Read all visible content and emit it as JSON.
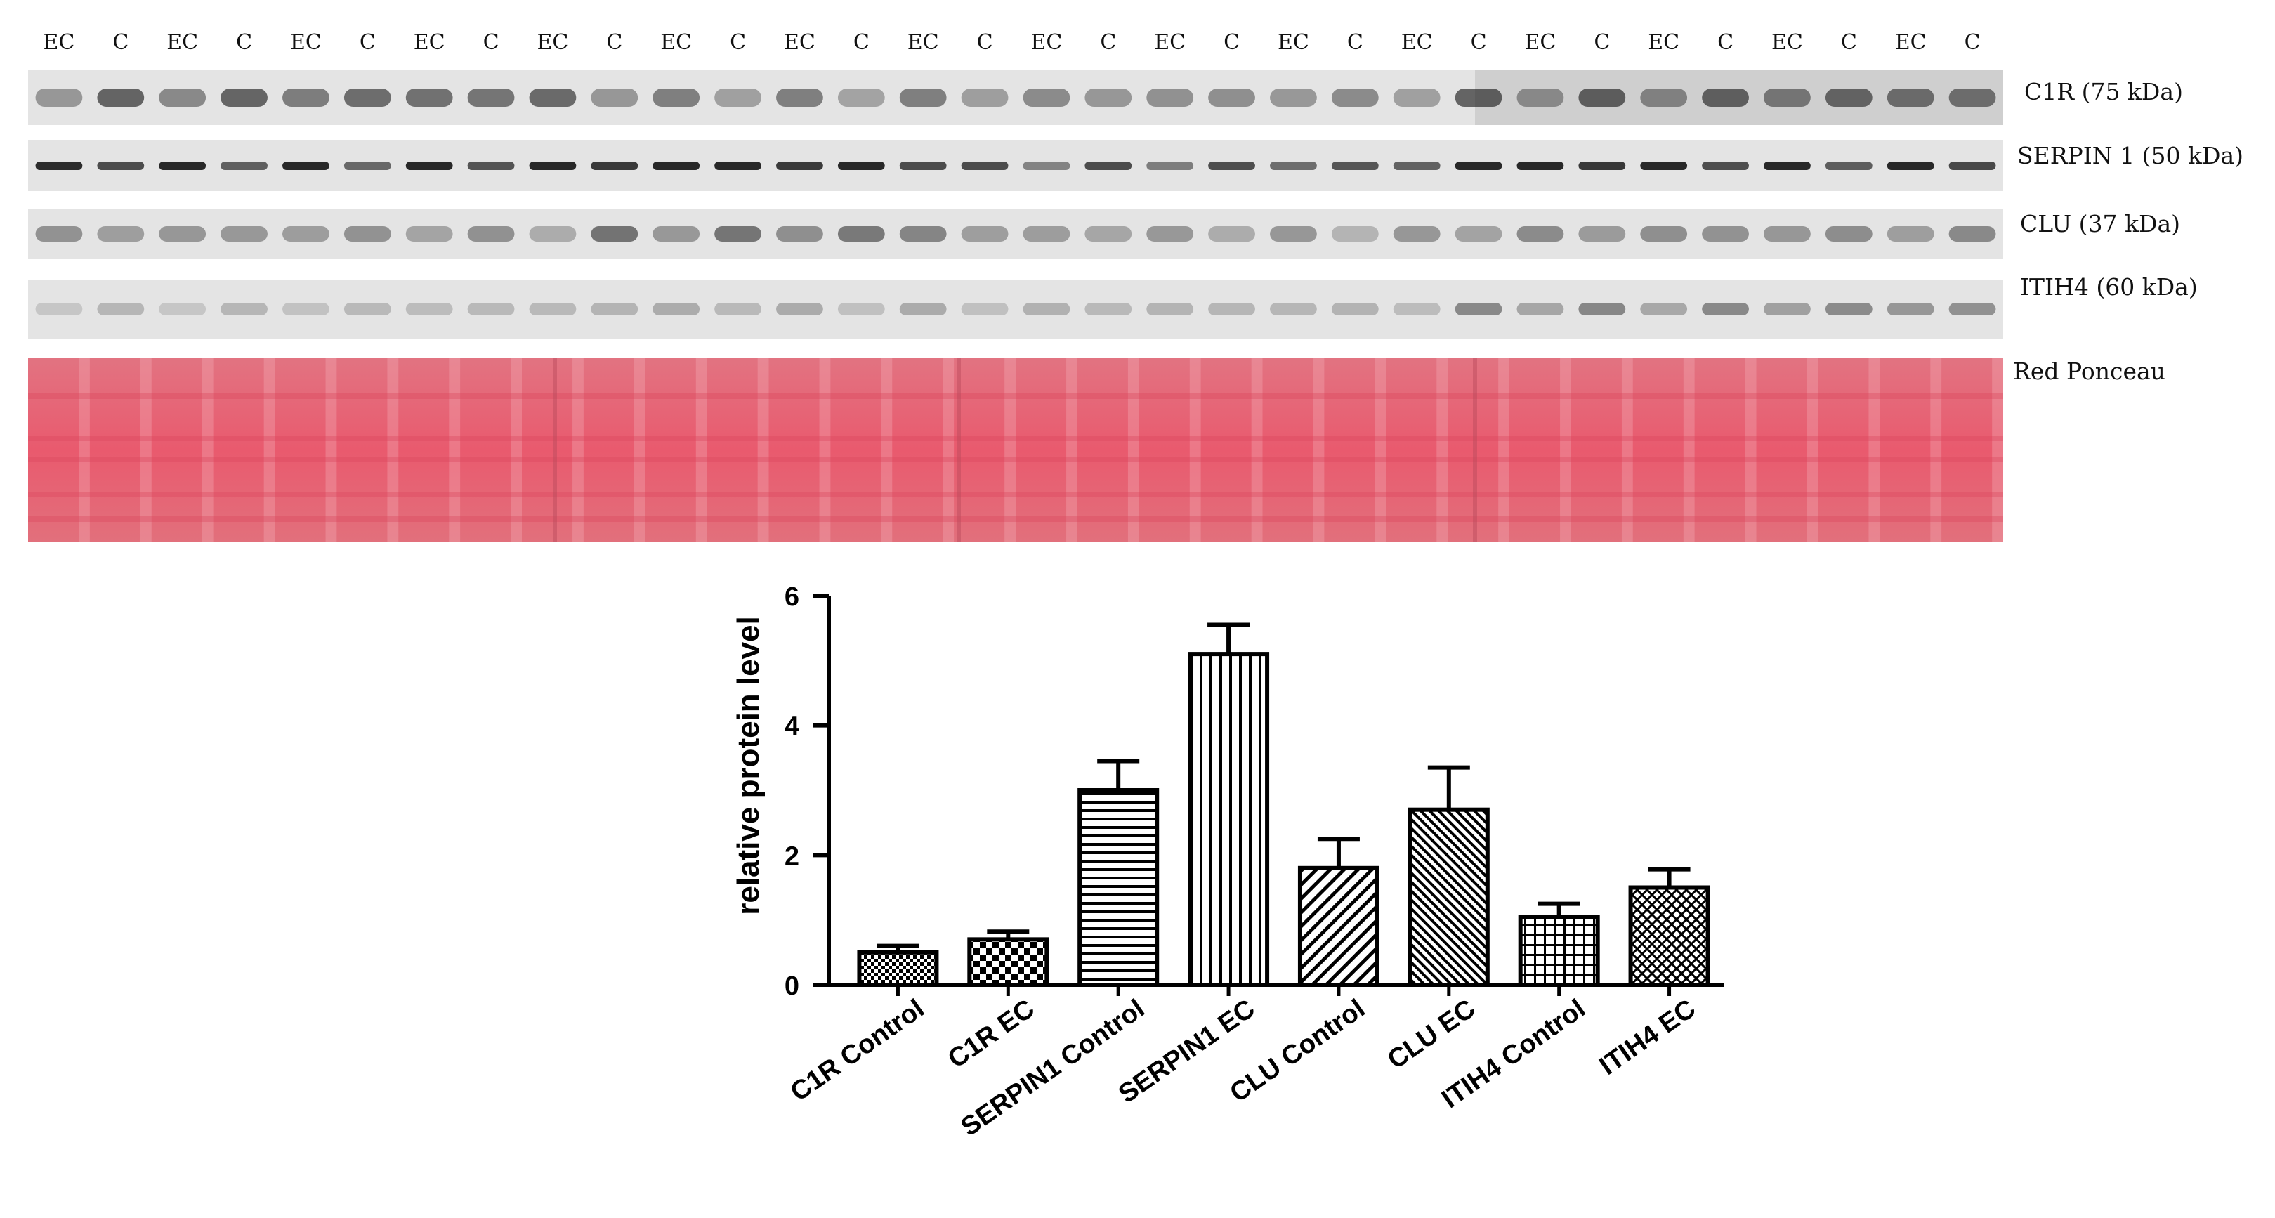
{
  "blot": {
    "lane_labels": [
      "EC",
      "C",
      "EC",
      "C",
      "EC",
      "C",
      "EC",
      "C",
      "EC",
      "C",
      "EC",
      "C",
      "EC",
      "C",
      "EC",
      "C",
      "EC",
      "C",
      "EC",
      "C",
      "EC",
      "C",
      "EC",
      "C",
      "EC",
      "C",
      "EC",
      "C",
      "EC",
      "C",
      "EC",
      "C"
    ],
    "proteins": [
      {
        "name": "C1R (75 kDa)"
      },
      {
        "name": "SERPIN 1 (50 kDa)"
      },
      {
        "name": "CLU (37 kDa)"
      },
      {
        "name": "ITIH4 (60 kDa)"
      },
      {
        "name": "Red Ponceau"
      }
    ]
  },
  "chart_data": {
    "type": "bar",
    "title": "",
    "xlabel": "",
    "ylabel": "relative protein level",
    "ylim": [
      0,
      6
    ],
    "yticks": [
      "0",
      "2",
      "4",
      "6"
    ],
    "categories": [
      "C1R Control",
      "C1R EC",
      "SERPIN1 Control",
      "SERPIN1 EC",
      "CLU Control",
      "CLU EC",
      "ITIH4 Control",
      "ITIH4 EC"
    ],
    "values": [
      0.5,
      0.7,
      3.0,
      5.1,
      1.8,
      2.7,
      1.05,
      1.5
    ],
    "errors": [
      0.1,
      0.12,
      0.45,
      0.45,
      0.45,
      0.65,
      0.2,
      0.28
    ],
    "patterns": [
      "checker-fine",
      "checker-large",
      "horizontal",
      "vertical",
      "diagonal-wide",
      "diagonal-dense",
      "grid",
      "crosshatch"
    ],
    "bar_color": "#000000",
    "grid": false
  },
  "colors": {
    "ponceau": "#e86a78",
    "blot_bg": "#e4e4e4",
    "band": "#1e1e1e"
  }
}
